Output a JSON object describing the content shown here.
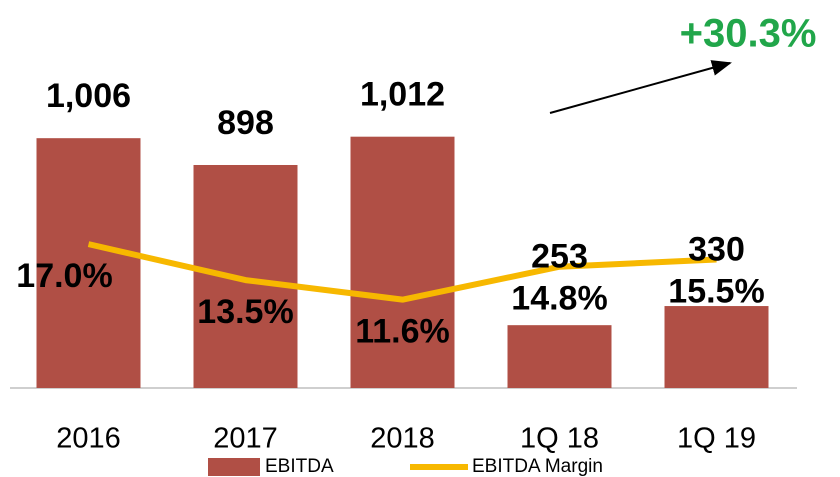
{
  "chart_data": {
    "type": "bar",
    "categories": [
      "2016",
      "2017",
      "2018",
      "1Q 18",
      "1Q 19"
    ],
    "series": [
      {
        "name": "EBITDA",
        "type": "bar",
        "color": "#b04f45",
        "values": [
          1006,
          898,
          1012,
          253,
          330
        ],
        "value_labels": [
          "1,006",
          "898",
          "1,012",
          "253",
          "330"
        ]
      },
      {
        "name": "EBITDA Margin",
        "type": "line",
        "axis": "y2",
        "color": "#f7b800",
        "values": [
          17.0,
          13.5,
          11.6,
          14.8,
          15.5
        ],
        "value_labels": [
          "17.0%",
          "13.5%",
          "11.6%",
          "14.8%",
          "15.5%"
        ]
      }
    ],
    "ylim": [
      0,
      1200
    ],
    "y2lim": [
      3,
      32
    ],
    "annotations": [
      "+30.3%"
    ]
  }
}
